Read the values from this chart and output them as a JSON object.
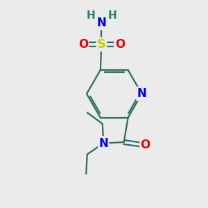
{
  "bg_color": "#ebebeb",
  "bond_color": "#2d6b5e",
  "bond_width": 1.6,
  "atom_colors": {
    "C": "#2d6b5e",
    "N": "#0000ee",
    "O": "#ee0000",
    "S": "#cccc00",
    "H": "#2d7a7a"
  },
  "figsize": [
    3.0,
    3.0
  ],
  "dpi": 100
}
